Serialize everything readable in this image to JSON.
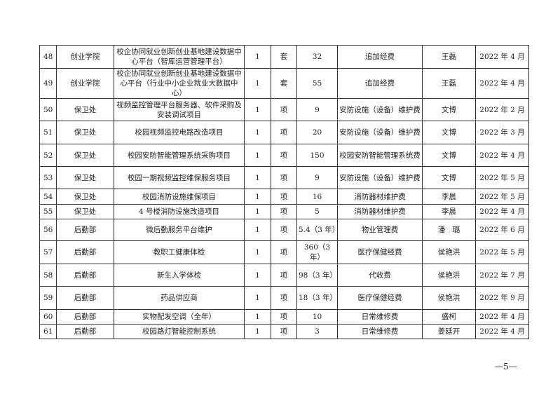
{
  "rows": [
    {
      "no": "48",
      "dept": "创业学院",
      "project": "校企协同就业创新创业基地建设数据中心平台（智库运营管理平台）",
      "qty": "1",
      "unit": "套",
      "amount": "32",
      "fund": "追加经费",
      "contact": "王磊",
      "date": "2022 年 4 月"
    },
    {
      "no": "49",
      "dept": "创业学院",
      "project": "校企协同就业创新创业基地建设数据中心平台（行业中小企业就业大数据中心）",
      "qty": "1",
      "unit": "套",
      "amount": "55",
      "fund": "追加经费",
      "contact": "王磊",
      "date": "2022 年 4 月"
    },
    {
      "no": "50",
      "dept": "保卫处",
      "project": "视频监控管理平台服务器、软件采购及安装调试项目",
      "qty": "1",
      "unit": "项",
      "amount": "9",
      "fund": "安防设施（设备）维护费",
      "contact": "文博",
      "date": "2022 年 2 月"
    },
    {
      "no": "51",
      "dept": "保卫处",
      "project": "校园视频监控电路改造项目",
      "qty": "1",
      "unit": "项",
      "amount": "20",
      "fund": "安防设施（设备）维护费",
      "contact": "文博",
      "date": "2022 年 3 月"
    },
    {
      "no": "52",
      "dept": "保卫处",
      "project": "校园安防智能管理系统采购项目",
      "qty": "1",
      "unit": "项",
      "amount": "150",
      "fund": "校园安防智能管理系统费",
      "contact": "文博",
      "date": "2022 年 4 月"
    },
    {
      "no": "53",
      "dept": "保卫处",
      "project": "校园一期视频监控维保服务项目",
      "qty": "1",
      "unit": "项",
      "amount": "9",
      "fund": "安防设施（设备）维护费",
      "contact": "文博",
      "date": "2022 年 5 月"
    },
    {
      "no": "54",
      "dept": "保卫处",
      "project": "校园消防设施维保项目",
      "qty": "1",
      "unit": "项",
      "amount": "16",
      "fund": "消防器材维护费",
      "contact": "李晨",
      "date": "2022 年 5 月"
    },
    {
      "no": "55",
      "dept": "保卫处",
      "project": "4 号楼消防设施改造项目",
      "qty": "1",
      "unit": "项",
      "amount": "5",
      "fund": "消防器材维护费",
      "contact": "李晨",
      "date": "2022 年 4 月"
    },
    {
      "no": "56",
      "dept": "后勤部",
      "project": "微后勤服务平台维护",
      "qty": "1",
      "unit": "项",
      "amount": "5.4（3 年）",
      "fund": "物业管理费",
      "contact": "潘　璐",
      "date": "2022 年 6 月"
    },
    {
      "no": "57",
      "dept": "后勤部",
      "project": "教职工健康体检",
      "qty": "1",
      "unit": "项",
      "amount": "360（3 年）",
      "fund": "医疗保健经费",
      "contact": "侯艳洪",
      "date": "2022 年 5 月"
    },
    {
      "no": "58",
      "dept": "后勤部",
      "project": "新生入学体检",
      "qty": "1",
      "unit": "项",
      "amount": "98（3 年）",
      "fund": "代收费",
      "contact": "侯艳洪",
      "date": "2022 年 7 月"
    },
    {
      "no": "59",
      "dept": "后勤部",
      "project": "药品供应商",
      "qty": "1",
      "unit": "项",
      "amount": "18（3 年）",
      "fund": "医疗保健经费",
      "contact": "侯艳洪",
      "date": "2022 年 9 月"
    },
    {
      "no": "60",
      "dept": "后勤部",
      "project": "实物配发空调（全年）",
      "qty": "1",
      "unit": "项",
      "amount": "10",
      "fund": "日常维修费",
      "contact": "盛柯",
      "date": "2022 年 4 月"
    },
    {
      "no": "61",
      "dept": "后勤部",
      "project": "校园路灯智能控制系统",
      "qty": "1",
      "unit": "项",
      "amount": "3",
      "fund": "日常维修费",
      "contact": "姜廷开",
      "date": "2022 年 4 月"
    }
  ],
  "page_number": "—5—"
}
